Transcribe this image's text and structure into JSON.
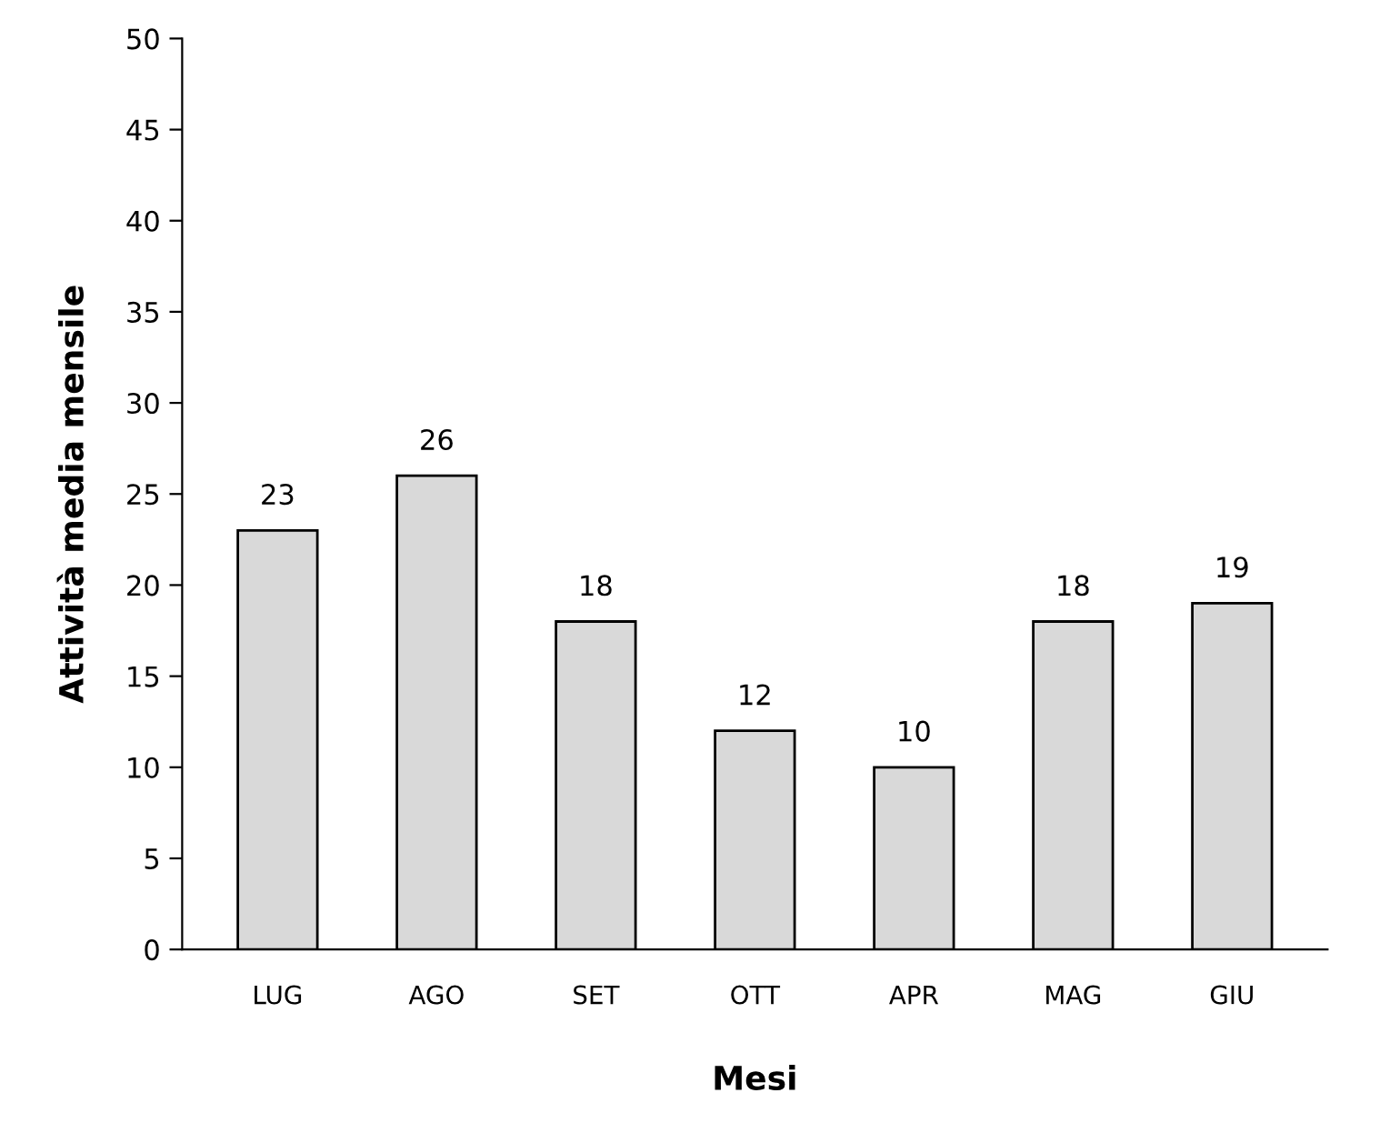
{
  "chart_data": {
    "type": "bar",
    "xlabel": "Mesi",
    "ylabel": "Attività media mensile",
    "categories": [
      "LUG",
      "AGO",
      "SET",
      "OTT",
      "APR",
      "MAG",
      "GIU"
    ],
    "values": [
      23,
      26,
      18,
      12,
      10,
      18,
      19
    ],
    "color": "#d9d9d9",
    "ylim": [
      0,
      50
    ],
    "yticks": [
      0,
      5,
      10,
      15,
      20,
      25,
      30,
      35,
      40,
      45,
      50
    ],
    "data_labels": true,
    "grid": false,
    "legend": false
  }
}
